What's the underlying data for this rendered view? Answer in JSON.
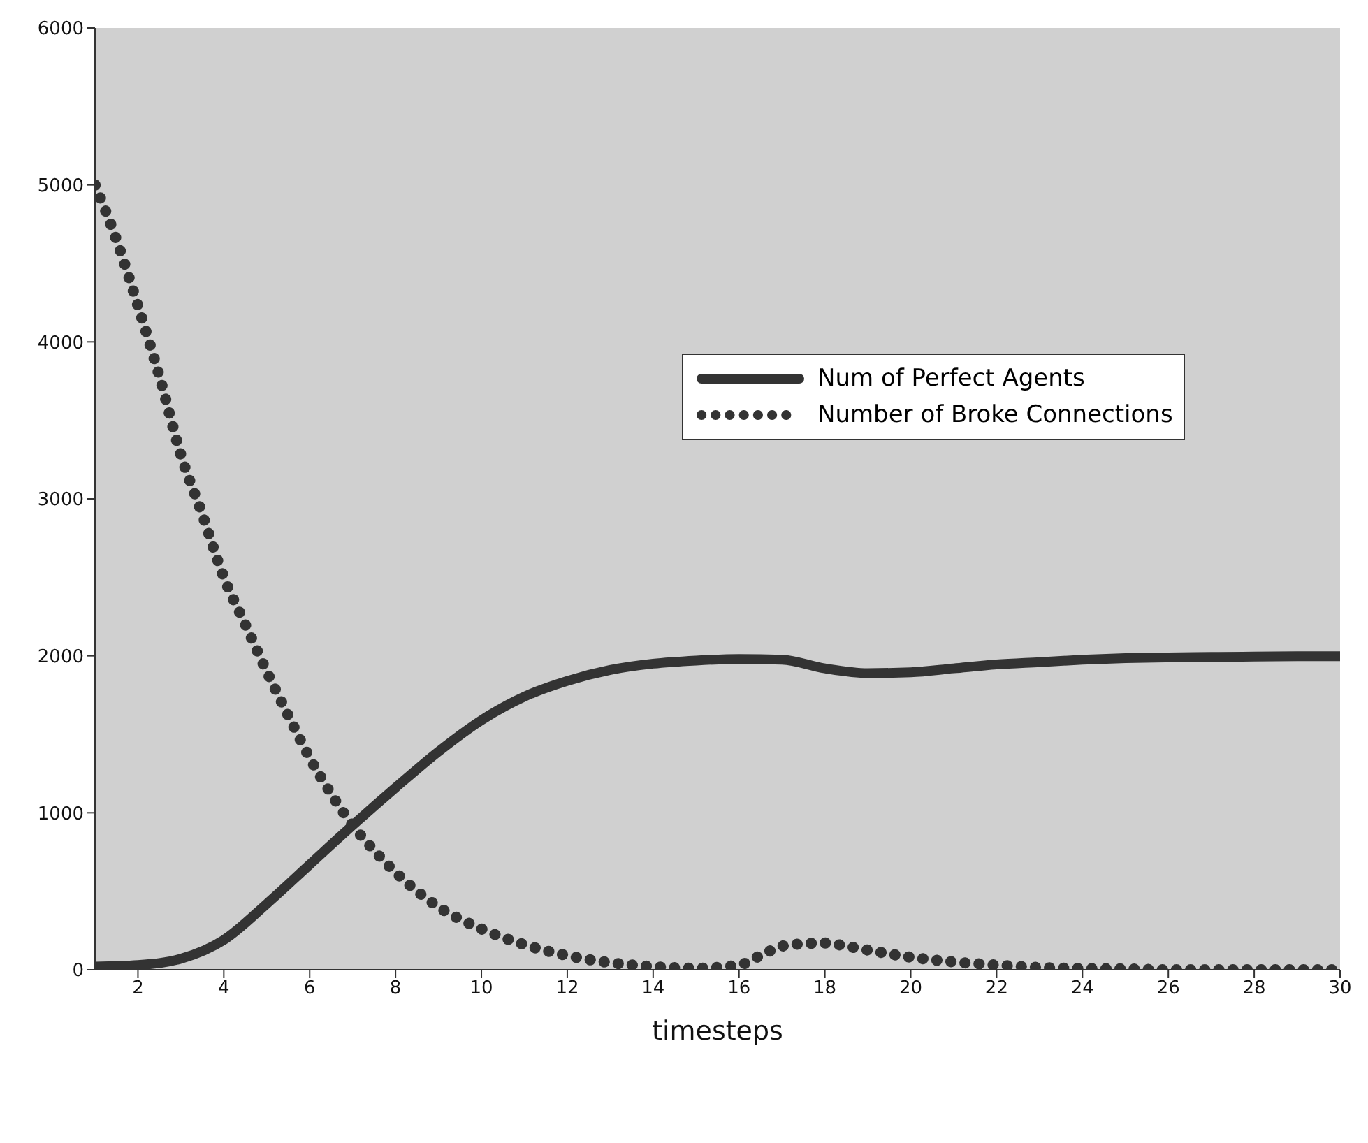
{
  "chart_data": {
    "type": "line",
    "xlabel": "timesteps",
    "xlim": [
      1,
      30
    ],
    "xticks": [
      2,
      4,
      6,
      8,
      10,
      12,
      14,
      16,
      18,
      20,
      22,
      24,
      26,
      28,
      30
    ],
    "ylim": [
      0,
      6000
    ],
    "yticks": [
      0,
      1000,
      2000,
      3000,
      4000,
      5000,
      6000
    ],
    "grid": false,
    "legend": "right",
    "marker": "none",
    "series": [
      {
        "name": "Num of Perfect Agents",
        "color": "#333333",
        "line_style": "solid",
        "x": [
          1,
          2,
          3,
          4,
          5,
          6,
          7,
          8,
          9,
          10,
          11,
          12,
          13,
          14,
          15,
          16,
          17,
          18,
          19,
          20,
          21,
          22,
          23,
          24,
          25,
          26,
          27,
          28,
          29,
          30
        ],
        "values": [
          20,
          30,
          70,
          190,
          420,
          670,
          920,
          1160,
          1390,
          1590,
          1740,
          1840,
          1910,
          1950,
          1970,
          1980,
          1975,
          1920,
          1890,
          1895,
          1920,
          1945,
          1960,
          1975,
          1985,
          1990,
          1993,
          1995,
          1997,
          1997
        ]
      },
      {
        "name": "Number of Broke Connections",
        "color": "#333333",
        "line_style": "dotted",
        "x": [
          1,
          1.5,
          2,
          2.5,
          3,
          3.5,
          4,
          4.5,
          5,
          5.5,
          6,
          6.5,
          7,
          7.5,
          8,
          9,
          10,
          11,
          12,
          13,
          14,
          15,
          16,
          16.5,
          17,
          17.5,
          18,
          18.5,
          19,
          20,
          21,
          22,
          23,
          24,
          25,
          26,
          27,
          28,
          29,
          30
        ],
        "values": [
          5000,
          4650,
          4230,
          3780,
          3280,
          2900,
          2500,
          2200,
          1900,
          1620,
          1350,
          1120,
          920,
          760,
          620,
          400,
          260,
          160,
          90,
          45,
          20,
          10,
          30,
          90,
          150,
          165,
          170,
          150,
          125,
          80,
          50,
          30,
          15,
          8,
          5,
          0,
          0,
          0,
          0,
          0
        ]
      }
    ]
  }
}
